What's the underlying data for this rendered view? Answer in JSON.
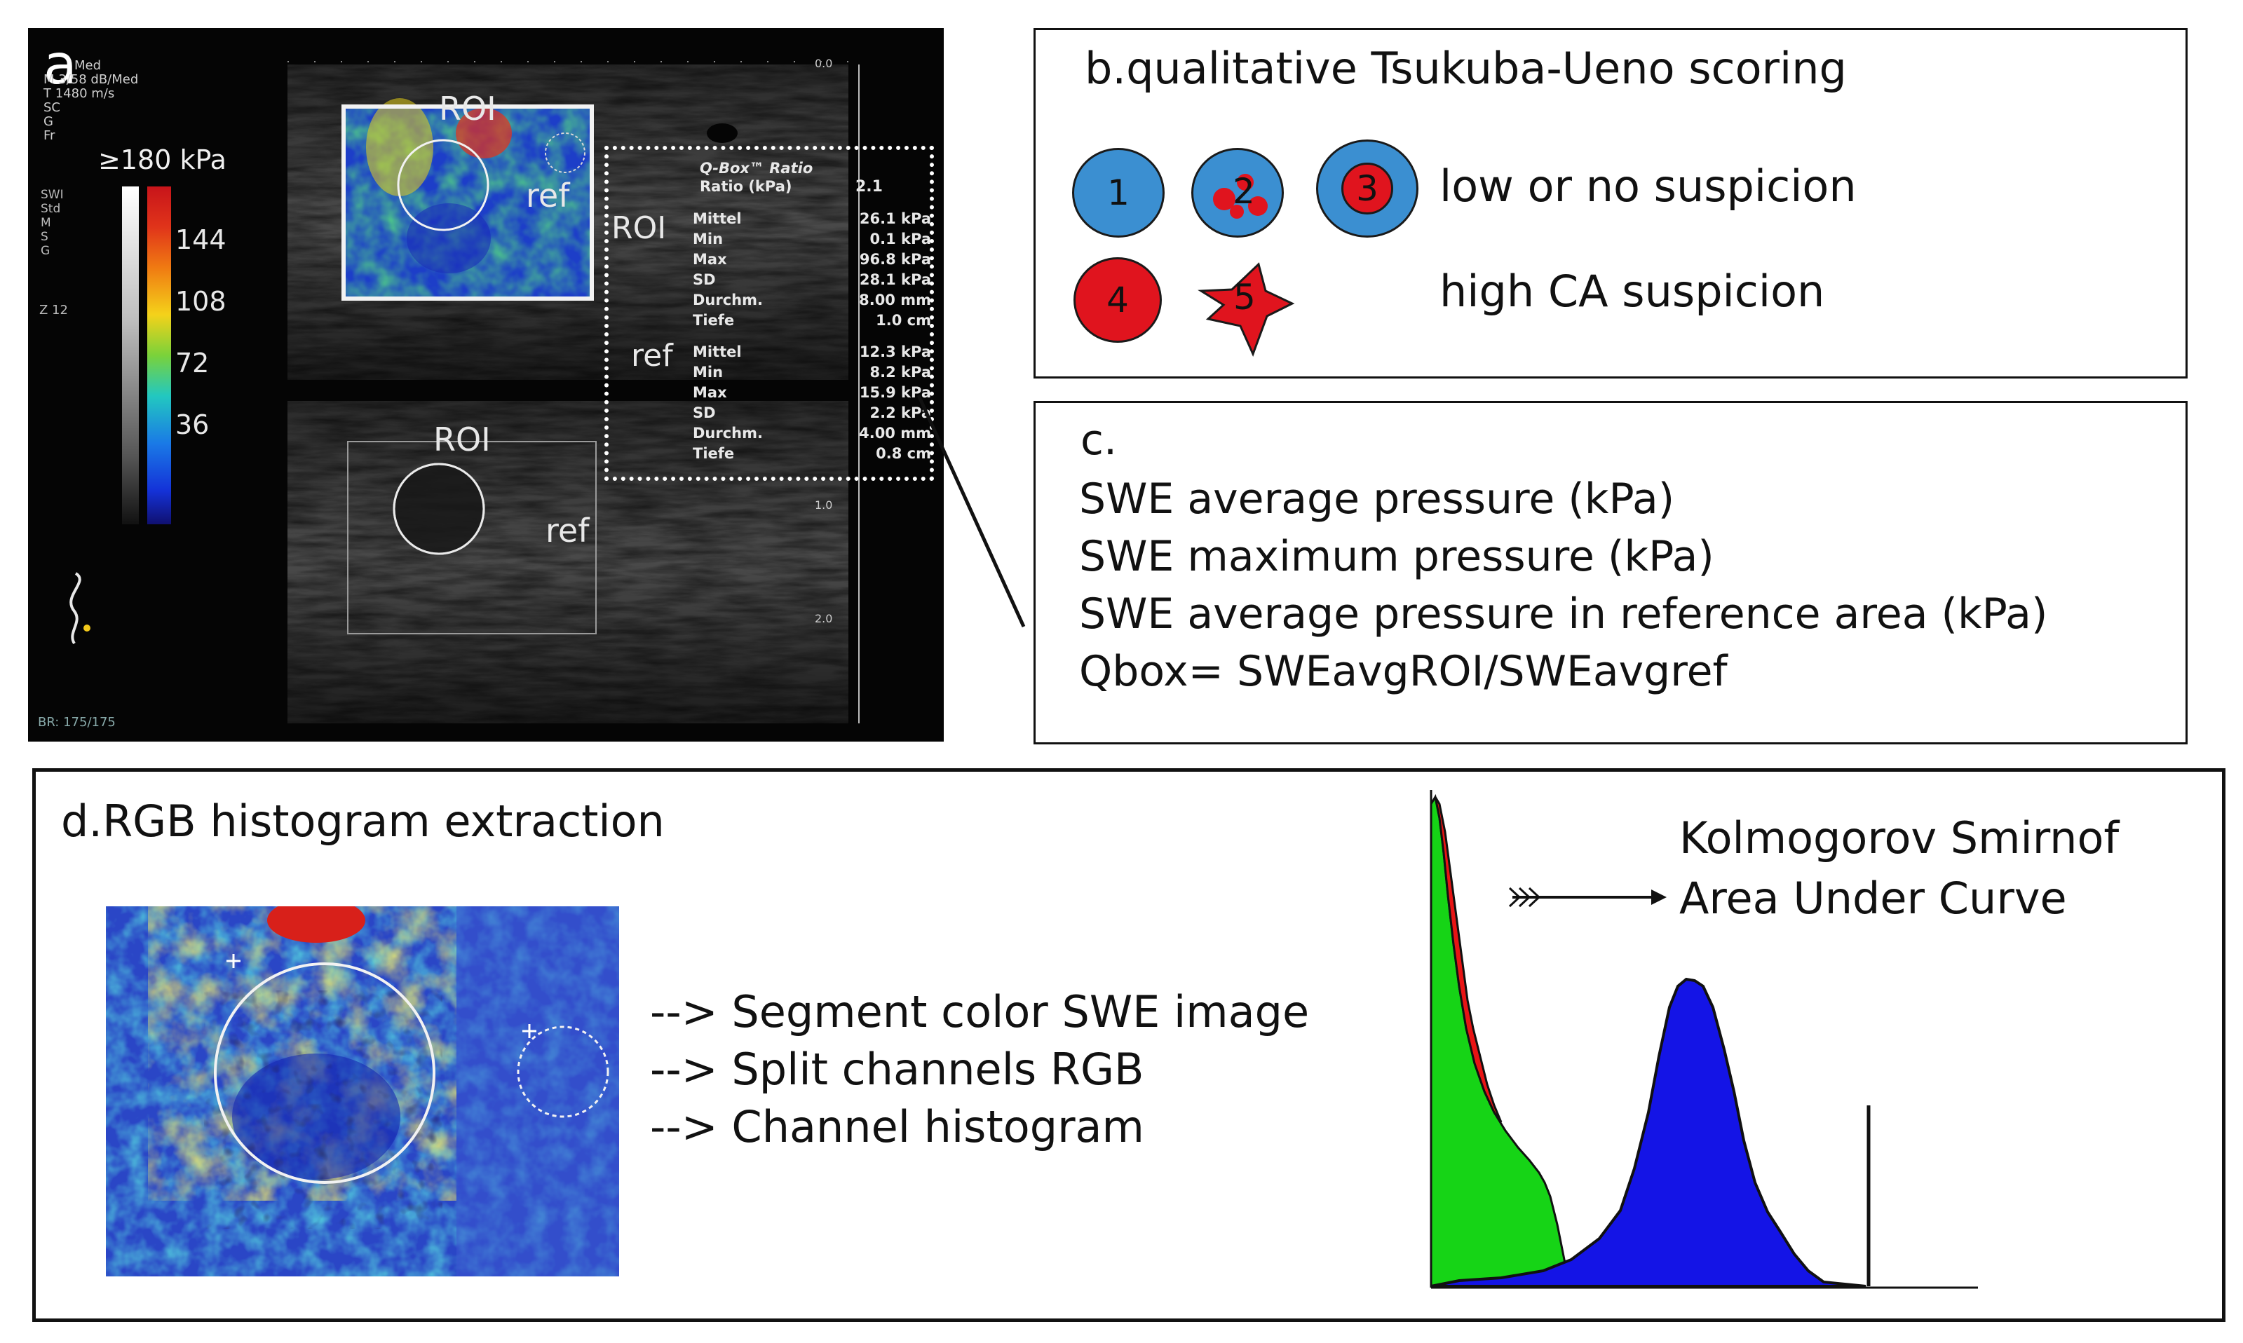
{
  "panel_a": {
    "letter": "a",
    "device_lines": [
      "B",
      "Med",
      "M 3/58 dB/Med",
      "T 1480 m/s",
      "SC",
      "G",
      "Fr"
    ],
    "scale_title": "≥180 kPa",
    "scale_ticks": [
      "144",
      "108",
      "72",
      "36"
    ],
    "left_lines": [
      "SWI",
      "Std",
      "M",
      "S",
      "G"
    ],
    "z_label": "Z 12",
    "footer": "BR: 175/175",
    "depth_ticks": [
      "0.0",
      "1.0",
      "1.0",
      "2.0"
    ],
    "roi_label": "ROI",
    "ref_label": "ref",
    "qbox_title": "Q-Box™ Ratio",
    "ratio_label": "Ratio (kPa)",
    "ratio_value": "2.1",
    "roi_rows": [
      {
        "k": "Mittel",
        "v": "26.1 kPa"
      },
      {
        "k": "Min",
        "v": "0.1 kPa"
      },
      {
        "k": "Max",
        "v": "96.8 kPa"
      },
      {
        "k": "SD",
        "v": "28.1 kPa"
      },
      {
        "k": "Durchm.",
        "v": "8.00 mm"
      },
      {
        "k": "Tiefe",
        "v": "1.0 cm"
      }
    ],
    "ref_rows": [
      {
        "k": "Mittel",
        "v": "12.3 kPa"
      },
      {
        "k": "Min",
        "v": "8.2 kPa"
      },
      {
        "k": "Max",
        "v": "15.9 kPa"
      },
      {
        "k": "SD",
        "v": "2.2 kPa"
      },
      {
        "k": "Durchm.",
        "v": "4.00 mm"
      },
      {
        "k": "Tiefe",
        "v": "0.8 cm"
      }
    ]
  },
  "panel_b": {
    "title": "b.qualitative Tsukuba-Ueno scoring",
    "scores": [
      "1",
      "2",
      "3",
      "4",
      "5"
    ],
    "low_text": "low or no suspicion",
    "high_text": "high CA suspicion"
  },
  "panel_c": {
    "title": "c.",
    "lines": [
      "SWE average pressure (kPa)",
      "SWE maximum pressure (kPa)",
      "SWE average pressure in reference area (kPa)",
      "Qbox= SWEavgROI/SWEavgref"
    ]
  },
  "panel_d": {
    "title": "d.RGB histogram extraction",
    "steps": [
      "--> Segment color SWE image",
      "--> Split channels RGB",
      "--> Channel histogram"
    ],
    "metrics": [
      "Kolmogorov Smirnof",
      "Area Under Curve"
    ]
  },
  "colors": {
    "blue_badge": "#3b8fd1",
    "red_badge": "#e0141e",
    "hist_green": "#16d416",
    "hist_red": "#e81414",
    "hist_blue": "#1414e6"
  }
}
